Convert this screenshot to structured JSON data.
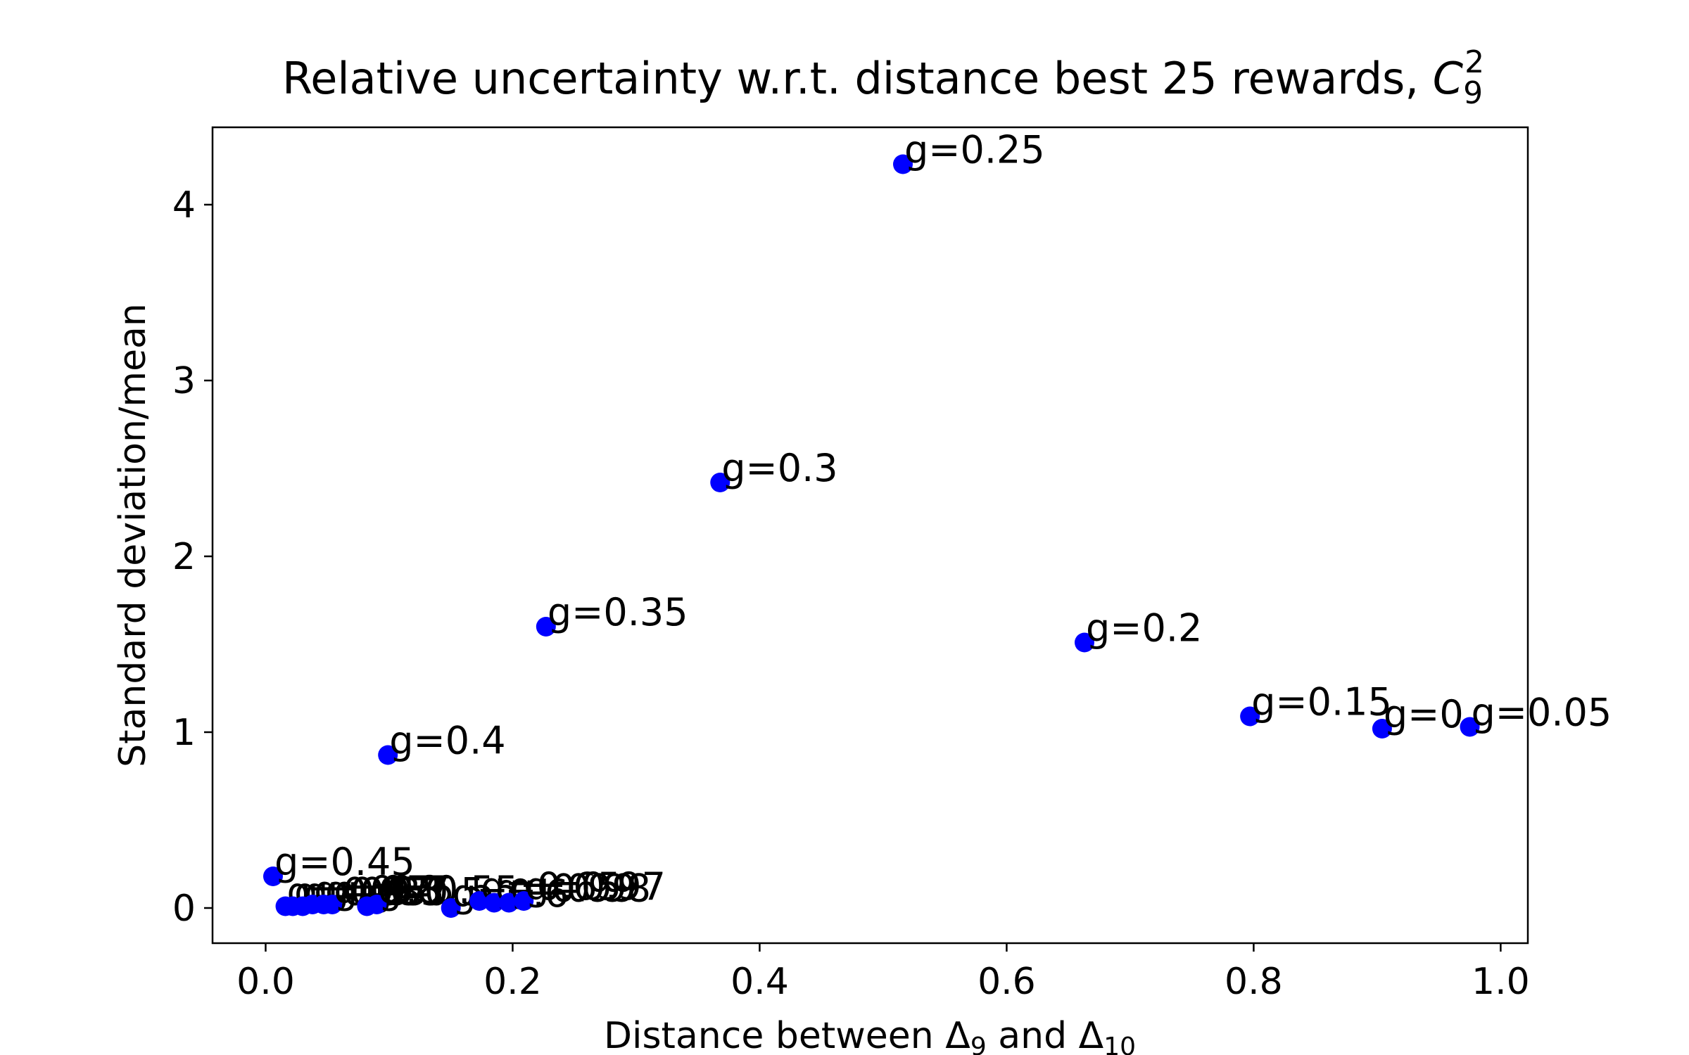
{
  "chart_data": {
    "type": "scatter",
    "title": "Relative uncertainty w.r.t. distance best 25 rewards, ",
    "title_math": {
      "base": "C",
      "sub": "9",
      "sup": "2"
    },
    "xlabel": {
      "prefix": "Distance between ",
      "sym1": "Δ",
      "sub1": "9",
      "middle": " and ",
      "sym2": "Δ",
      "sub2": "10"
    },
    "ylabel": "Standard deviation/mean",
    "xlim": [
      -0.043,
      1.022
    ],
    "ylim": [
      -0.2,
      4.44
    ],
    "xticks": [
      "0.0",
      "0.2",
      "0.4",
      "0.6",
      "0.8",
      "1.0"
    ],
    "yticks": [
      "0",
      "1",
      "2",
      "3",
      "4"
    ],
    "grid": false,
    "marker_color": "#0000ff",
    "points": [
      {
        "x": 0.516,
        "y": 4.23,
        "label": "g=0.25"
      },
      {
        "x": 0.368,
        "y": 2.42,
        "label": "g=0.3"
      },
      {
        "x": 0.227,
        "y": 1.6,
        "label": "g=0.35"
      },
      {
        "x": 0.663,
        "y": 1.51,
        "label": "g=0.2"
      },
      {
        "x": 0.797,
        "y": 1.09,
        "label": "g=0.15"
      },
      {
        "x": 0.904,
        "y": 1.02,
        "label": "g=0"
      },
      {
        "x": 0.975,
        "y": 1.03,
        "label": "g=0.05"
      },
      {
        "x": 0.099,
        "y": 0.87,
        "label": "g=0.4"
      },
      {
        "x": 0.006,
        "y": 0.18,
        "label": "g=0.45"
      },
      {
        "x": 0.016,
        "y": 0.01,
        "label": "g=0.95"
      },
      {
        "x": 0.022,
        "y": 0.01,
        "label": "g=0.9"
      },
      {
        "x": 0.03,
        "y": 0.01,
        "label": "g=0.85"
      },
      {
        "x": 0.038,
        "y": 0.02,
        "label": "g=0.75"
      },
      {
        "x": 0.047,
        "y": 0.02,
        "label": "g=0.8"
      },
      {
        "x": 0.054,
        "y": 0.02,
        "label": "g=0.7"
      },
      {
        "x": 0.082,
        "y": 0.01,
        "label": "g=0.5"
      },
      {
        "x": 0.09,
        "y": 0.02,
        "label": "g=0.55"
      },
      {
        "x": 0.15,
        "y": 0.0,
        "label": "g=0.6"
      },
      {
        "x": 0.173,
        "y": 0.04,
        "label": "g=0.65"
      },
      {
        "x": 0.185,
        "y": 0.03,
        "label": "g=0.99"
      },
      {
        "x": 0.197,
        "y": 0.03,
        "label": "g=0.98"
      },
      {
        "x": 0.209,
        "y": 0.04,
        "label": "g=0.97"
      }
    ]
  }
}
